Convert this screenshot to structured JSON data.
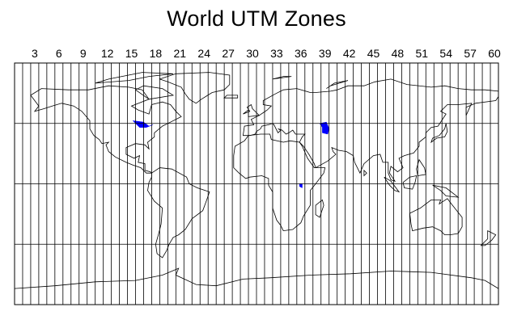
{
  "title": "World UTM Zones",
  "zone_labels": [
    "3",
    "6",
    "9",
    "12",
    "15",
    "18",
    "21",
    "24",
    "27",
    "30",
    "33",
    "36",
    "39",
    "42",
    "45",
    "48",
    "51",
    "54",
    "57",
    "60"
  ],
  "map": {
    "zone_count": 60,
    "zone_width_degrees": 6,
    "lon_range": [
      -180,
      180
    ],
    "lat_range": [
      -90,
      90
    ],
    "latitude_grid_lines": [
      -45,
      0,
      45
    ],
    "land_alternate_colors": [
      "#ccffcc",
      "#c0c0c0"
    ],
    "ocean_color": "#ffffff",
    "lake_color": "#0000ff",
    "outline_color": "#000000"
  }
}
